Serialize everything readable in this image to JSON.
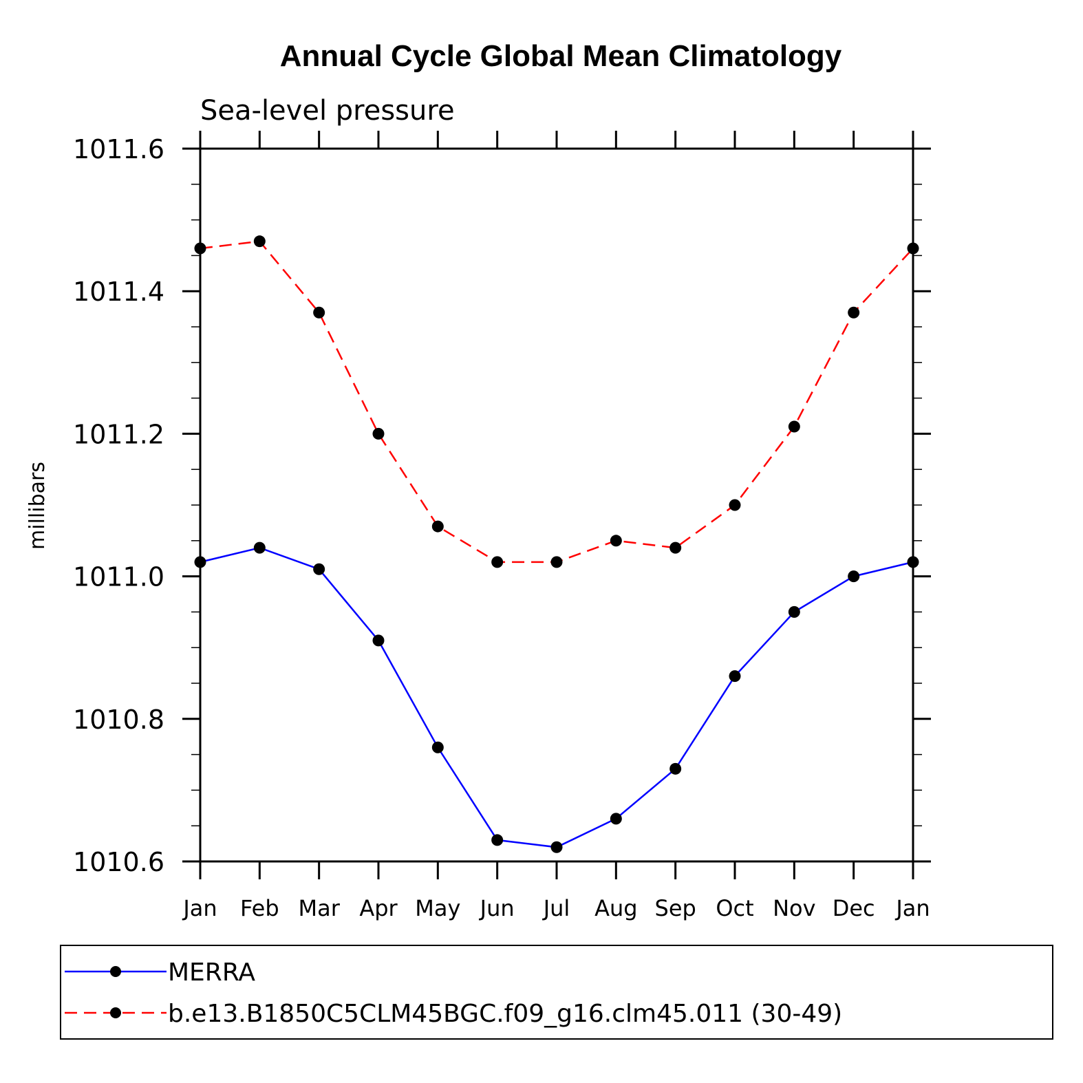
{
  "chart_data": {
    "type": "line",
    "title": "Annual Cycle Global Mean Climatology",
    "subtitle": "Sea-level pressure",
    "xlabel": "",
    "ylabel": "millibars",
    "categories": [
      "Jan",
      "Feb",
      "Mar",
      "Apr",
      "May",
      "Jun",
      "Jul",
      "Aug",
      "Sep",
      "Oct",
      "Nov",
      "Dec",
      "Jan"
    ],
    "ylim": [
      1010.6,
      1011.6
    ],
    "yticks": [
      "1010.6",
      "1010.8",
      "1011.0",
      "1011.2",
      "1011.4",
      "1011.6"
    ],
    "grid": false,
    "legend_position": "bottom",
    "series": [
      {
        "name": "MERRA",
        "color": "#0000ff",
        "dash": "solid",
        "values": [
          1011.02,
          1011.04,
          1011.01,
          1010.91,
          1010.76,
          1010.63,
          1010.62,
          1010.66,
          1010.73,
          1010.86,
          1010.95,
          1011.0,
          1011.02
        ]
      },
      {
        "name": "b.e13.B1850C5CLM45BGC.f09_g16.clm45.011 (30-49)",
        "color": "#ff0000",
        "dash": "dashed",
        "values": [
          1011.46,
          1011.47,
          1011.37,
          1011.2,
          1011.07,
          1011.02,
          1011.02,
          1011.05,
          1011.04,
          1011.1,
          1011.21,
          1011.37,
          1011.46
        ]
      }
    ]
  }
}
